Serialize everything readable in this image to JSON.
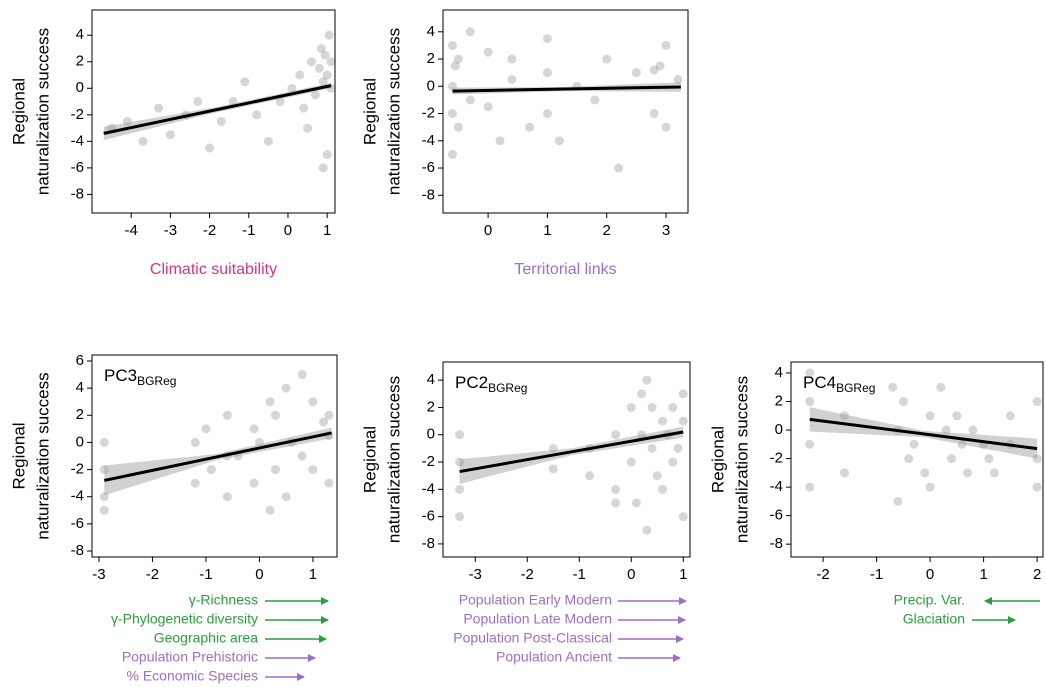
{
  "chart_data": [
    {
      "type": "scatter",
      "xlabel": "Climatic suitability",
      "xlabel_color": "#d6338f",
      "ylabel": [
        "Regional",
        "naturalization success"
      ],
      "color": "#444444",
      "x": [
        -4.5,
        -4.1,
        -3.7,
        -3.3,
        -3.0,
        -2.6,
        -2.3,
        -2.0,
        -1.7,
        -1.4,
        -1.1,
        -0.8,
        -0.5,
        -0.2,
        0.1,
        0.3,
        0.5,
        0.6,
        0.7,
        0.8,
        0.85,
        0.9,
        0.95,
        1.0,
        1.0,
        1.05,
        1.1,
        1.1,
        0.9,
        0.4
      ],
      "y": [
        -3,
        -2.5,
        -4,
        -1.5,
        -3.5,
        -2,
        -1,
        -4.5,
        -2.5,
        -1,
        0.5,
        -2,
        -4,
        -1,
        0,
        1,
        -3,
        2,
        -0.5,
        1.5,
        3,
        0.5,
        2.5,
        1,
        -5,
        4,
        0,
        2,
        -6,
        -1.5
      ],
      "fit": {
        "x": [
          -4.7,
          -1.8,
          1.1
        ],
        "y": [
          -3.4,
          -1.6,
          0.2
        ]
      },
      "ci": {
        "lower": [
          -3.9,
          -1.8,
          0.0
        ],
        "upper": [
          -2.9,
          -1.4,
          0.4
        ]
      },
      "xlim": [
        -5,
        1.2
      ],
      "ylim": [
        -9.4,
        5.9
      ],
      "xticks": [
        -4,
        -3,
        -2,
        -1,
        0,
        1
      ],
      "yticks": [
        4,
        2,
        0,
        -2,
        -4,
        -6,
        -8
      ]
    },
    {
      "type": "scatter",
      "xlabel": "Territorial links",
      "xlabel_color": "#9b6fc6",
      "ylabel": [
        "Regional",
        "naturalization success"
      ],
      "color": "#444444",
      "x": [
        -0.6,
        -0.6,
        -0.6,
        -0.6,
        -0.55,
        -0.5,
        -0.5,
        -0.3,
        -0.3,
        0,
        0,
        0.2,
        0.4,
        0.4,
        0.7,
        1,
        1,
        1,
        1.2,
        1.5,
        1.8,
        2,
        2.2,
        2.5,
        2.8,
        2.8,
        2.9,
        3,
        3,
        3.2
      ],
      "y": [
        3,
        -2,
        0,
        -5,
        1.5,
        -3,
        2,
        -1,
        4,
        -1.5,
        2.5,
        -4,
        0.5,
        2,
        -3,
        1,
        -2,
        3.5,
        -4,
        0,
        -1,
        2,
        -6,
        1,
        1.2,
        -2,
        1.5,
        3,
        -3,
        0.5
      ],
      "fit": {
        "x": [
          -0.6,
          1.3,
          3.25
        ],
        "y": [
          -0.35,
          -0.2,
          -0.05
        ]
      },
      "ci": {
        "lower": [
          -0.6,
          -0.35,
          -0.4
        ],
        "upper": [
          -0.1,
          -0.05,
          0.3
        ]
      },
      "xlim": [
        -0.76,
        3.37
      ],
      "ylim": [
        -9.3,
        5.6
      ],
      "xticks": [
        0,
        1,
        2,
        3
      ],
      "yticks": [
        4,
        2,
        0,
        -2,
        -4,
        -6,
        -8
      ]
    },
    {
      "type": "scatter",
      "panel_label": {
        "main": "PC3",
        "sub": "BGReg"
      },
      "ylabel": [
        "Regional",
        "naturalization success"
      ],
      "color": "#444444",
      "x": [
        -2.9,
        -2.9,
        -2.9,
        -2.9,
        -1.2,
        -1.2,
        -1,
        -0.9,
        -0.6,
        -0.6,
        -0.4,
        -0.1,
        -0.1,
        0,
        0.2,
        0.3,
        0.3,
        0.5,
        0.5,
        0.6,
        0.8,
        0.8,
        1,
        1,
        1.2,
        1.3,
        1.3,
        1.3,
        0.2,
        -0.6
      ],
      "y": [
        -2,
        -4,
        -5,
        0,
        0,
        -3,
        1,
        -2,
        -4,
        2,
        -1,
        1,
        -3,
        0,
        3,
        2,
        -2,
        4,
        -4,
        0,
        5,
        -1,
        3,
        -2,
        1.5,
        2,
        -3,
        0.5,
        -5,
        -1
      ],
      "fit": {
        "x": [
          -2.9,
          -0.8,
          1.35
        ],
        "y": [
          -2.8,
          -1.07,
          0.7
        ]
      },
      "ci": {
        "lower": [
          -3.9,
          -1.3,
          0.3
        ],
        "upper": [
          -1.7,
          -0.85,
          1.1
        ]
      },
      "xlim": [
        -3.13,
        1.45
      ],
      "ylim": [
        -8.44,
        6.44
      ],
      "xticks": [
        -3,
        -2,
        -1,
        0,
        1
      ],
      "yticks": [
        6,
        4,
        2,
        0,
        -2,
        -4,
        -6,
        -8
      ],
      "annotations": [
        {
          "text": "γ-Richness",
          "color": "#2a9d3f",
          "arrow": "right"
        },
        {
          "text": "γ-Phylogenetic diversity",
          "color": "#2a9d3f",
          "arrow": "right"
        },
        {
          "text": "Geographic area",
          "color": "#2a9d3f",
          "arrow": "right"
        },
        {
          "text": "Population Prehistoric",
          "color": "#9b6fc6",
          "arrow": "right"
        },
        {
          "text": "% Economic Species",
          "color": "#9b6fc6",
          "arrow": "right"
        }
      ]
    },
    {
      "type": "scatter",
      "panel_label": {
        "main": "PC2",
        "sub": "BGReg"
      },
      "ylabel": [
        "Regional",
        "naturalization success"
      ],
      "color": "#444444",
      "x": [
        -3.3,
        -3.3,
        -3.3,
        -3.3,
        -1.5,
        -1.5,
        -0.8,
        -0.8,
        -0.3,
        -0.3,
        0,
        0,
        0.1,
        0.2,
        0.2,
        0.3,
        0.4,
        0.4,
        0.5,
        0.6,
        0.6,
        0.7,
        0.8,
        0.8,
        0.9,
        1,
        1,
        1,
        0.3,
        -0.3
      ],
      "y": [
        -2,
        -4,
        -6,
        0,
        -1,
        -2.5,
        -1,
        -3,
        0,
        -4,
        2,
        -2,
        -5,
        3,
        0,
        4,
        -1,
        2,
        -3,
        1,
        -4,
        0,
        2,
        -2,
        -1,
        1,
        -6,
        3,
        -7,
        -5
      ],
      "fit": {
        "x": [
          -3.3,
          -1.15,
          1.0
        ],
        "y": [
          -2.7,
          -1.25,
          0.2
        ]
      },
      "ci": {
        "lower": [
          -3.6,
          -1.5,
          -0.2
        ],
        "upper": [
          -1.8,
          -1.0,
          0.6
        ]
      },
      "xlim": [
        -3.62,
        1.13
      ],
      "ylim": [
        -8.96,
        5.33
      ],
      "xticks": [
        -3,
        -2,
        -1,
        0,
        1
      ],
      "yticks": [
        4,
        2,
        0,
        -2,
        -4,
        -6,
        -8
      ],
      "annotations": [
        {
          "text": "Population Early Modern",
          "color": "#9b6fc6",
          "arrow": "right"
        },
        {
          "text": "Population Late Modern",
          "color": "#9b6fc6",
          "arrow": "right"
        },
        {
          "text": "Population Post-Classical",
          "color": "#9b6fc6",
          "arrow": "right"
        },
        {
          "text": "Population Ancient",
          "color": "#9b6fc6",
          "arrow": "right"
        }
      ]
    },
    {
      "type": "scatter",
      "panel_label": {
        "main": "PC4",
        "sub": "BGReg"
      },
      "ylabel": [
        "Regional",
        "naturalization success"
      ],
      "color": "#444444",
      "x": [
        -2.25,
        -2.25,
        -2.25,
        -2.25,
        -1.6,
        -1.6,
        -0.7,
        -0.6,
        -0.6,
        -0.5,
        -0.4,
        -0.3,
        -0.1,
        0,
        0,
        0.2,
        0.3,
        0.4,
        0.5,
        0.6,
        0.7,
        0.8,
        1,
        1.1,
        1.2,
        1.5,
        1.5,
        2,
        2,
        2
      ],
      "y": [
        2,
        -1,
        -4,
        4,
        1,
        -3,
        3,
        0,
        -5,
        2,
        -2,
        -1,
        -3,
        1,
        -4,
        3,
        0,
        -2,
        1,
        -1,
        -3,
        0,
        -1,
        -2,
        -3,
        1,
        -1,
        2,
        -2,
        -4
      ],
      "fit": {
        "x": [
          -2.25,
          -0.125,
          2.0
        ],
        "y": [
          0.75,
          -0.27,
          -1.3
        ]
      },
      "ci": {
        "lower": [
          -0.1,
          -0.5,
          -2.0
        ],
        "upper": [
          1.6,
          -0.05,
          -0.6
        ]
      },
      "xlim": [
        -2.6,
        2.11
      ],
      "ylim": [
        -8.9,
        4.77
      ],
      "xticks": [
        -2,
        -1,
        0,
        1,
        2
      ],
      "yticks": [
        4,
        2,
        0,
        -2,
        -4,
        -6,
        -8
      ],
      "annotations": [
        {
          "text": "Precip. Var.",
          "color": "#2a9d3f",
          "arrow": "left"
        },
        {
          "text": "Glaciation",
          "color": "#2a9d3f",
          "arrow": "right"
        }
      ]
    }
  ]
}
